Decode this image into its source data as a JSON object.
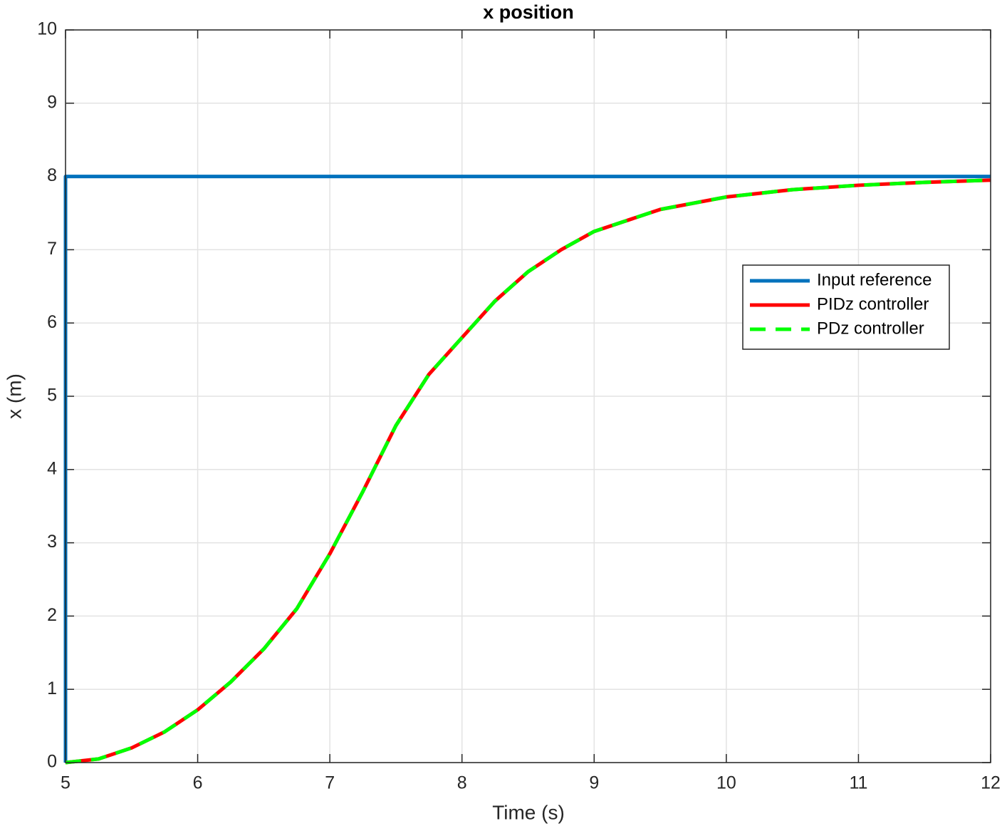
{
  "chart_data": {
    "type": "line",
    "title": "x position",
    "x_label": "Time (s)",
    "y_label": "x (m)",
    "xlim": [
      5,
      12
    ],
    "xticks": [
      5,
      6,
      7,
      8,
      9,
      10,
      11,
      12
    ],
    "ylim": [
      0,
      10
    ],
    "yticks": [
      0,
      1,
      2,
      3,
      4,
      5,
      6,
      7,
      8,
      9,
      10
    ],
    "grid": true,
    "legend_position": "east",
    "series": [
      {
        "name": "Input reference",
        "color": "#0072bd",
        "line_style": "solid",
        "x": [
          5,
          5,
          12
        ],
        "values": [
          0,
          8,
          8
        ]
      },
      {
        "name": "PIDz controller",
        "color": "#ff0000",
        "line_style": "solid",
        "x": [
          5,
          5.25,
          5.5,
          5.75,
          6,
          6.25,
          6.5,
          6.75,
          7,
          7.25,
          7.5,
          7.75,
          8,
          8.25,
          8.5,
          8.75,
          9,
          9.5,
          10,
          10.5,
          11,
          11.5,
          12
        ],
        "values": [
          0,
          0.05,
          0.2,
          0.42,
          0.72,
          1.1,
          1.55,
          2.1,
          2.85,
          3.7,
          4.6,
          5.3,
          5.8,
          6.3,
          6.7,
          7.0,
          7.25,
          7.55,
          7.72,
          7.82,
          7.88,
          7.92,
          7.95
        ]
      },
      {
        "name": "PDz controller",
        "color": "#00ff00",
        "line_style": "dashed",
        "x": [
          5,
          5.25,
          5.5,
          5.75,
          6,
          6.25,
          6.5,
          6.75,
          7,
          7.25,
          7.5,
          7.75,
          8,
          8.25,
          8.5,
          8.75,
          9,
          9.5,
          10,
          10.5,
          11,
          11.5,
          12
        ],
        "values": [
          0,
          0.05,
          0.2,
          0.42,
          0.72,
          1.1,
          1.55,
          2.1,
          2.85,
          3.7,
          4.6,
          5.3,
          5.8,
          6.3,
          6.7,
          7.0,
          7.25,
          7.55,
          7.72,
          7.82,
          7.88,
          7.92,
          7.95
        ]
      }
    ]
  }
}
